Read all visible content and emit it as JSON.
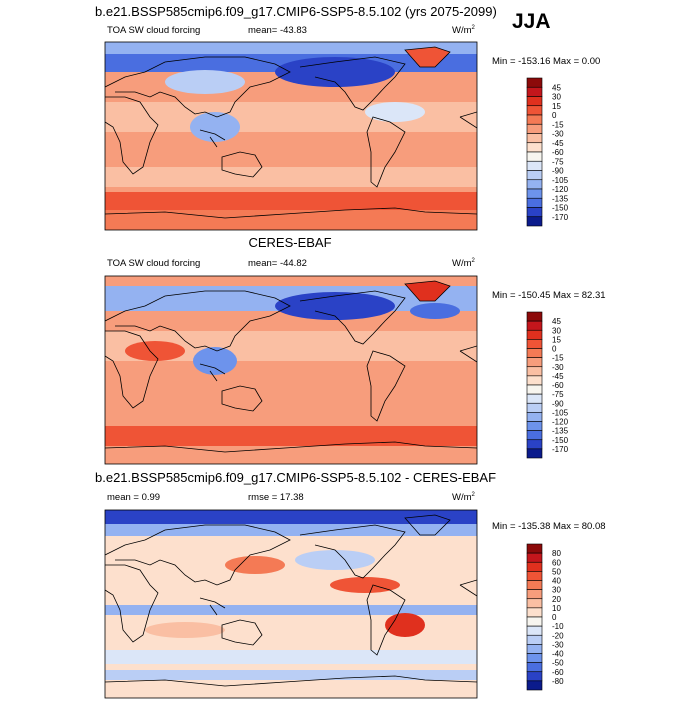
{
  "season": "JJA",
  "panels": [
    {
      "title": "b.e21.BSSP585cmip6.f09_g17.CMIP6-SSP5-8.5.102 (yrs 2075-2099)",
      "variable": "TOA SW cloud forcing",
      "mean": "mean= -43.83",
      "units": "W/m",
      "units_exp": "2",
      "min_max": "Min = -153.16 Max =   0.00",
      "colorbar": {
        "labels": [
          45,
          30,
          15,
          0,
          -15,
          -30,
          -45,
          -60,
          -75,
          -90,
          -105,
          -120,
          -135,
          -150,
          -170
        ],
        "colors": [
          "#8c0a0a",
          "#c4161c",
          "#e0301e",
          "#ef5436",
          "#f47a55",
          "#f79d7c",
          "#fabfa3",
          "#fde0cd",
          "#f7f5ef",
          "#dbe6f8",
          "#bacef5",
          "#94b2f1",
          "#6d93ec",
          "#4a6ee0",
          "#2a42c6",
          "#0b1b8c"
        ]
      }
    },
    {
      "title": "CERES-EBAF",
      "variable": "TOA SW cloud forcing",
      "mean": "mean= -44.82",
      "units": "W/m",
      "units_exp": "2",
      "min_max": "Min = -150.45 Max =  82.31",
      "colorbar": {
        "labels": [
          45,
          30,
          15,
          0,
          -15,
          -30,
          -45,
          -60,
          -75,
          -90,
          -105,
          -120,
          -135,
          -150,
          -170
        ],
        "colors": [
          "#8c0a0a",
          "#c4161c",
          "#e0301e",
          "#ef5436",
          "#f47a55",
          "#f79d7c",
          "#fabfa3",
          "#fde0cd",
          "#f7f5ef",
          "#dbe6f8",
          "#bacef5",
          "#94b2f1",
          "#6d93ec",
          "#4a6ee0",
          "#2a42c6",
          "#0b1b8c"
        ]
      }
    },
    {
      "title": "b.e21.BSSP585cmip6.f09_g17.CMIP6-SSP5-8.5.102 - CERES-EBAF",
      "mean": "mean =   0.99",
      "rmse": "rmse =  17.38",
      "units": "W/m",
      "units_exp": "2",
      "min_max": "Min = -135.38 Max =  80.08",
      "colorbar": {
        "labels": [
          80,
          60,
          50,
          40,
          30,
          20,
          10,
          0,
          -10,
          -20,
          -30,
          -40,
          -50,
          -60,
          -80
        ],
        "colors": [
          "#8c0a0a",
          "#c4161c",
          "#e0301e",
          "#ef5436",
          "#f47a55",
          "#f79d7c",
          "#fabfa3",
          "#fde0cd",
          "#f7f5ef",
          "#dbe6f8",
          "#bacef5",
          "#94b2f1",
          "#6d93ec",
          "#4a6ee0",
          "#2a42c6",
          "#0b1b8c"
        ]
      }
    }
  ]
}
